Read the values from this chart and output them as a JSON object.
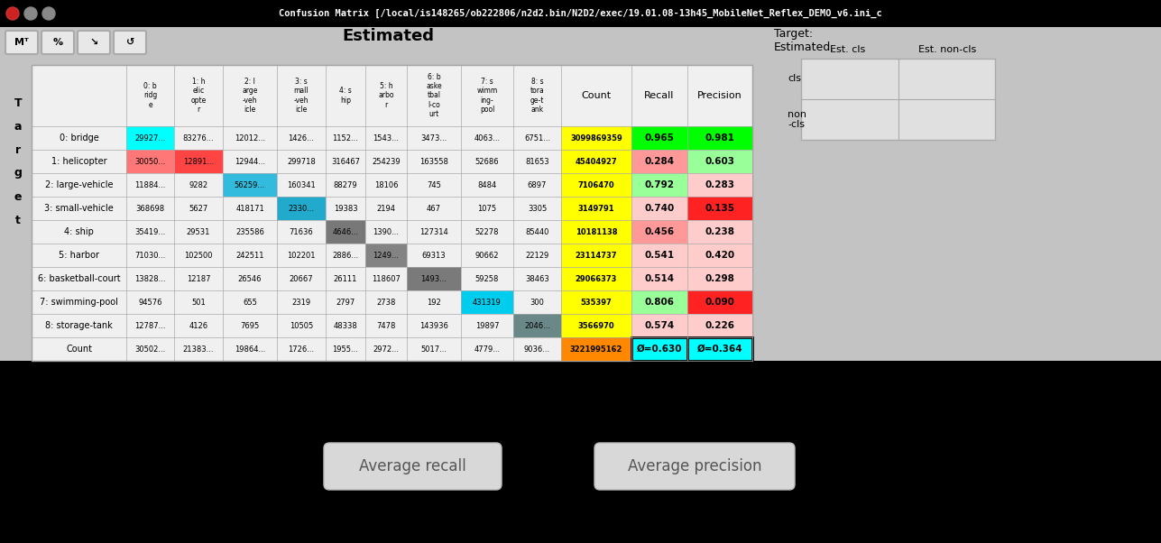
{
  "title": "Confusion Matrix [/local/is148265/ob222806/n2d2.bin/N2D2/exec/19.01.08-13h45_MobileNet_Reflex_DEMO_v6.ini_c",
  "row_labels": [
    "0: bridge",
    "1: helicopter",
    "2: large-vehicle",
    "3: small-vehicle",
    "4: ship",
    "5: harbor",
    "6: basketball-court",
    "7: swimming-pool",
    "8: storage-tank",
    "Count"
  ],
  "col_short_labels": [
    "0: b\nridg\ne",
    "1: h\nelic\nopte\nr",
    "2: l\narge\n-veh\nicle",
    "3: s\nmall\n-veh\nicle",
    "4: s\nhip",
    "5: h\narbo\nr",
    "6: b\naske\ntbal\nl-co\nurt",
    "7: s\nwimm\ning-\npool",
    "8: s\ntora\nge-t\nank"
  ],
  "matrix_vals": [
    [
      "29927...",
      "83276...",
      "12012...",
      "1426...",
      "1152...",
      "1543...",
      "3473...",
      "4063...",
      "6751..."
    ],
    [
      "30050...",
      "12891...",
      "12944...",
      "299718",
      "316467",
      "254239",
      "163558",
      "52686",
      "81653"
    ],
    [
      "11884...",
      "9282",
      "56259...",
      "160341",
      "88279",
      "18106",
      "745",
      "8484",
      "6897"
    ],
    [
      "368698",
      "5627",
      "418171",
      "2330...",
      "19383",
      "2194",
      "467",
      "1075",
      "3305"
    ],
    [
      "35419...",
      "29531",
      "235586",
      "71636",
      "4646...",
      "1390...",
      "127314",
      "52278",
      "85440"
    ],
    [
      "71030...",
      "102500",
      "242511",
      "102201",
      "2886...",
      "1249...",
      "69313",
      "90662",
      "22129"
    ],
    [
      "13828...",
      "12187",
      "26546",
      "20667",
      "26111",
      "118607",
      "1493...",
      "59258",
      "38463"
    ],
    [
      "94576",
      "501",
      "655",
      "2319",
      "2797",
      "2738",
      "192",
      "431319",
      "300"
    ],
    [
      "12787...",
      "4126",
      "7695",
      "10505",
      "48338",
      "7478",
      "143936",
      "19897",
      "2046..."
    ]
  ],
  "count_vals": [
    "3099869359",
    "45404927",
    "7106470",
    "3149791",
    "10181138",
    "23114737",
    "29066373",
    "535397",
    "3566970"
  ],
  "recall_vals": [
    "0.965",
    "0.284",
    "0.792",
    "0.740",
    "0.456",
    "0.541",
    "0.514",
    "0.806",
    "0.574"
  ],
  "precision_vals": [
    "0.981",
    "0.603",
    "0.283",
    "0.135",
    "0.238",
    "0.420",
    "0.298",
    "0.090",
    "0.226"
  ],
  "count_row_vals": [
    "30502...",
    "21383...",
    "19864...",
    "1726...",
    "1955...",
    "2972...",
    "5017...",
    "4779...",
    "9036..."
  ],
  "count_total": "3221995162",
  "avg_recall": "Ø=0.630",
  "avg_precision": "Ø=0.364",
  "diag_colors": [
    "#00ffff",
    "#ff4444",
    "#33bbdd",
    "#22aacc",
    "#787878",
    "#838383",
    "#7a7a7a",
    "#00ccee",
    "#6a8888"
  ],
  "recall_colors": [
    "#00ff00",
    "#ff9999",
    "#99ff99",
    "#99ff99",
    "#ffbbbb",
    "#ffcccc",
    "#ffcccc",
    "#99ff99",
    "#ffcccc"
  ],
  "precision_colors": [
    "#00ff00",
    "#99ff99",
    "#ffcccc",
    "#ff3333",
    "#ffcccc",
    "#ffcccc",
    "#ffcccc",
    "#ff1111",
    "#ffcccc"
  ],
  "row1_col0_color": "#ff7777",
  "count_color": "#ffff00",
  "count_row_color": "#ff8800",
  "avg_bg": "#00ffff",
  "titlebar_bg": "#3d3d3d",
  "content_bg": "#c3c3c3",
  "lower_bg": "#000000",
  "table_bg": "#f0f0f0",
  "button_bg": "#d8d8d8",
  "avg_recall_btn": "Average recall",
  "avg_precision_btn": "Average precision"
}
